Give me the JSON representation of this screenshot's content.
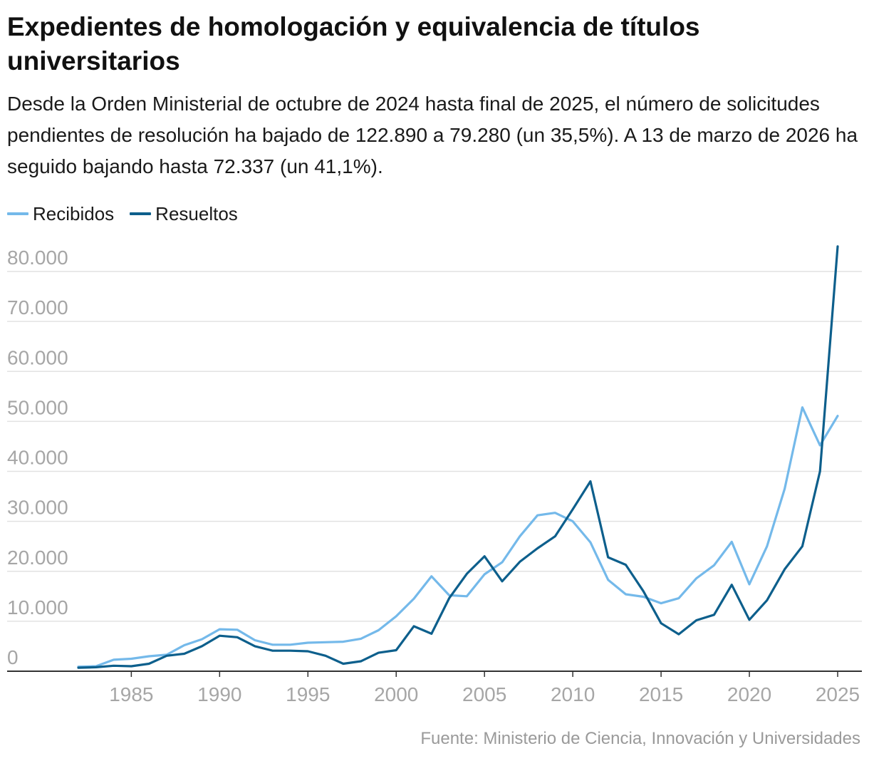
{
  "title": "Expedientes de homologación y equivalencia de títulos universitarios",
  "subtitle": "Desde la Orden Ministerial de octubre de 2024 hasta final de 2025, el número de solicitudes pendientes de resolución ha bajado de 122.890 a 79.280 (un 35,5%). A 13 de marzo de 2026 ha seguido bajando hasta 72.337 (un 41,1%).",
  "source": "Fuente: Ministerio de Ciencia, Innovación y Universidades",
  "chart_data": {
    "type": "line",
    "x": [
      1982,
      1983,
      1984,
      1985,
      1986,
      1987,
      1988,
      1989,
      1990,
      1991,
      1992,
      1993,
      1994,
      1995,
      1996,
      1997,
      1998,
      1999,
      2000,
      2001,
      2002,
      2003,
      2004,
      2005,
      2006,
      2007,
      2008,
      2009,
      2010,
      2011,
      2012,
      2013,
      2014,
      2015,
      2016,
      2017,
      2018,
      2019,
      2020,
      2021,
      2022,
      2023,
      2024,
      2025
    ],
    "series": [
      {
        "name": "Recibidos",
        "color": "#74b9ea",
        "values": [
          900,
          1000,
          2300,
          2500,
          3000,
          3300,
          5200,
          6400,
          8400,
          8300,
          6200,
          5300,
          5300,
          5700,
          5800,
          5900,
          6500,
          8200,
          11000,
          14500,
          19000,
          15200,
          15000,
          19400,
          21800,
          27000,
          31200,
          31700,
          30000,
          25800,
          18300,
          15400,
          14900,
          13600,
          14600,
          18600,
          21200,
          25900,
          17400,
          25000,
          36500,
          52800,
          45200,
          51100
        ]
      },
      {
        "name": "Resueltos",
        "color": "#0d5f8c",
        "values": [
          700,
          800,
          1100,
          1000,
          1500,
          3100,
          3500,
          5000,
          7100,
          6800,
          5000,
          4100,
          4100,
          4000,
          3100,
          1500,
          2000,
          3700,
          4200,
          9000,
          7500,
          14600,
          19500,
          23000,
          18000,
          21900,
          24600,
          27000,
          32400,
          38000,
          22800,
          21300,
          16000,
          9600,
          7400,
          10200,
          11300,
          17300,
          10300,
          14200,
          20400,
          25000,
          40000,
          85000
        ]
      }
    ],
    "yticks": [
      0,
      10000,
      20000,
      30000,
      40000,
      50000,
      60000,
      70000,
      80000
    ],
    "ytick_labels": [
      "0",
      "10.000",
      "20.000",
      "30.000",
      "40.000",
      "50.000",
      "60.000",
      "70.000",
      "80.000"
    ],
    "xticks": [
      1985,
      1990,
      1995,
      2000,
      2005,
      2010,
      2015,
      2020,
      2025
    ],
    "xtick_labels": [
      "1985",
      "1990",
      "1995",
      "2000",
      "2005",
      "2010",
      "2015",
      "2020",
      "2025"
    ],
    "xlim": [
      1982,
      2025
    ],
    "ylim": [
      0,
      80000
    ],
    "grid": true,
    "legend_position": "top-left",
    "axis_color": "#333333",
    "grid_color": "#e2e2e2",
    "tick_label_color": "#a6a6a6"
  }
}
